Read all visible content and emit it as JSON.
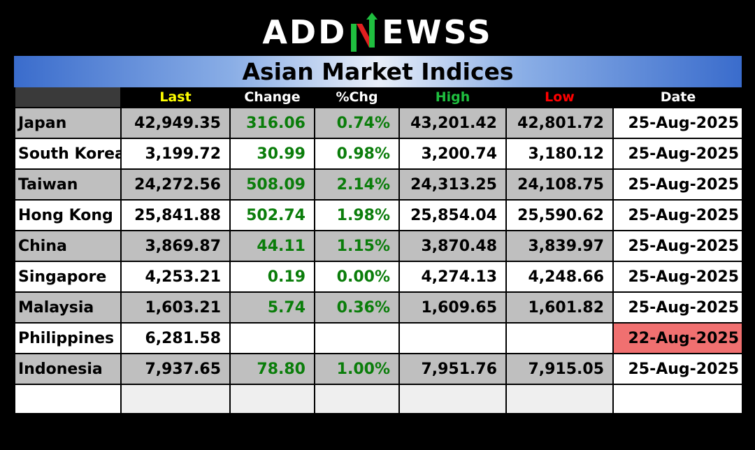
{
  "logo": {
    "left": "ADD",
    "right": "EWSS"
  },
  "title": "Asian Market Indices",
  "columns": {
    "last": "Last",
    "change": "Change",
    "pct": "%Chg",
    "high": "High",
    "low": "Low",
    "date": "Date"
  },
  "colors": {
    "positive": "#0a7d0a",
    "last_header": "#ffff00",
    "high_header": "#1fbf3f",
    "low_header": "#ff0000",
    "stale_date_bg": "#f07070"
  },
  "rows": [
    {
      "name": "Japan",
      "last": "42,949.35",
      "change": "316.06",
      "pct": "0.74%",
      "high": "43,201.42",
      "low": "42,801.72",
      "date": "25-Aug-2025"
    },
    {
      "name": "South Korea",
      "last": "3,199.72",
      "change": "30.99",
      "pct": "0.98%",
      "high": "3,200.74",
      "low": "3,180.12",
      "date": "25-Aug-2025"
    },
    {
      "name": "Taiwan",
      "last": "24,272.56",
      "change": "508.09",
      "pct": "2.14%",
      "high": "24,313.25",
      "low": "24,108.75",
      "date": "25-Aug-2025"
    },
    {
      "name": "Hong Kong",
      "last": "25,841.88",
      "change": "502.74",
      "pct": "1.98%",
      "high": "25,854.04",
      "low": "25,590.62",
      "date": "25-Aug-2025"
    },
    {
      "name": "China",
      "last": "3,869.87",
      "change": "44.11",
      "pct": "1.15%",
      "high": "3,870.48",
      "low": "3,839.97",
      "date": "25-Aug-2025"
    },
    {
      "name": "Singapore",
      "last": "4,253.21",
      "change": "0.19",
      "pct": "0.00%",
      "high": "4,274.13",
      "low": "4,248.66",
      "date": "25-Aug-2025"
    },
    {
      "name": "Malaysia",
      "last": "1,603.21",
      "change": "5.74",
      "pct": "0.36%",
      "high": "1,609.65",
      "low": "1,601.82",
      "date": "25-Aug-2025"
    },
    {
      "name": "Philippines",
      "last": "6,281.58",
      "change": "",
      "pct": "",
      "high": "",
      "low": "",
      "date": "22-Aug-2025"
    },
    {
      "name": "Indonesia",
      "last": "7,937.65",
      "change": "78.80",
      "pct": "1.00%",
      "high": "7,951.76",
      "low": "7,915.05",
      "date": "25-Aug-2025"
    }
  ]
}
